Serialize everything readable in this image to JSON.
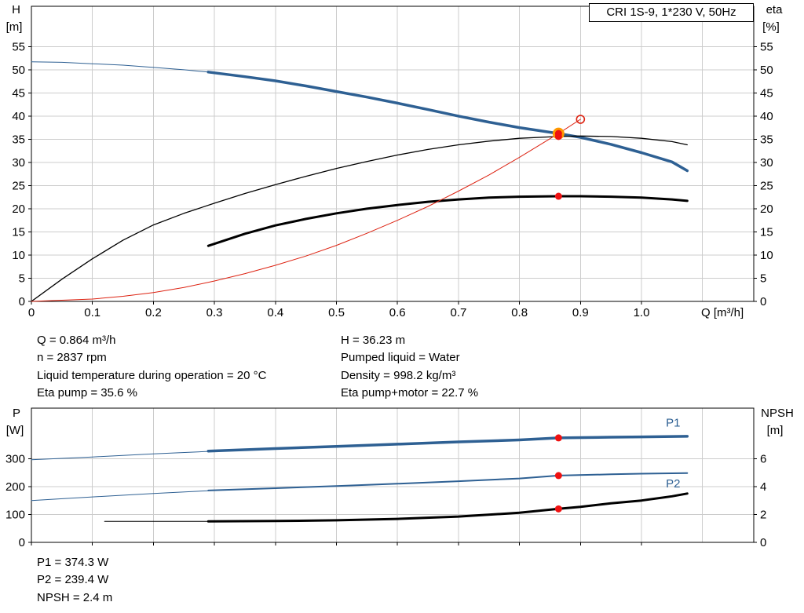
{
  "axes": {
    "top": {
      "left_1": "H",
      "left_2": "[m]",
      "right_1": "eta",
      "right_2": "[%]",
      "x": "Q [m³/h]"
    },
    "bottom": {
      "left_1": "P",
      "left_2": "[W]",
      "right_1": "NPSH",
      "right_2": "[m]"
    }
  },
  "info": {
    "top_left": [
      "Q = 0.864 m³/h",
      "n = 2837 rpm",
      "Liquid temperature during operation = 20 °C",
      "Eta pump = 35.6 %"
    ],
    "top_right": [
      "H = 36.23 m",
      "Pumped liquid = Water",
      "Density = 998.2 kg/m³",
      "Eta pump+motor = 22.7 %"
    ],
    "bottom": [
      "P1 = 374.3 W",
      "P2 = 239.4 W",
      "NPSH = 2.4 m"
    ]
  },
  "colors": {
    "curve_blue": "#2e6093",
    "curve_red": "#dd2211",
    "dot_red": "#ee1111",
    "ring_orange": "#ff9900",
    "grid": "#cccccc",
    "frame": "#000000"
  },
  "chart_data": [
    {
      "type": "line",
      "title": "CRI 1S-9, 1*230 V, 50Hz",
      "xlabel": "Q [m³/h]",
      "ylabel": "H [m]",
      "ylabel_right": "eta [%]",
      "xlim": [
        0,
        1.184
      ],
      "ylim": [
        0,
        63.7
      ],
      "ylim_right": [
        0,
        63.7
      ],
      "grid_color": "#cccccc",
      "show_x_labels": true,
      "xticks": [
        0,
        0.1,
        0.2,
        0.3,
        0.4,
        0.5,
        0.6,
        0.7,
        0.8,
        0.9,
        1.0
      ],
      "xgrid": [
        0.1,
        0.2,
        0.3,
        0.4,
        0.5,
        0.6,
        0.7,
        0.8,
        0.9,
        1.0,
        1.1
      ],
      "yticks": [
        0,
        5,
        10,
        15,
        20,
        25,
        30,
        35,
        40,
        45,
        50,
        55
      ],
      "yticks_right": [
        0,
        5,
        10,
        15,
        20,
        25,
        30,
        35,
        40,
        45,
        50,
        55
      ],
      "ygrid": [
        5,
        10,
        15,
        20,
        25,
        30,
        35,
        40,
        45,
        50,
        55
      ],
      "series": [
        {
          "name": "qh-shutoff",
          "color": "#2e6093",
          "width": 1,
          "points": [
            [
              0,
              51.7
            ],
            [
              0.05,
              51.6
            ],
            [
              0.1,
              51.3
            ],
            [
              0.15,
              51.0
            ],
            [
              0.2,
              50.5
            ],
            [
              0.25,
              50.0
            ],
            [
              0.29,
              49.5
            ]
          ]
        },
        {
          "name": "qh",
          "color": "#2e6093",
          "width": 3.5,
          "points": [
            [
              0.29,
              49.5
            ],
            [
              0.35,
              48.5
            ],
            [
              0.4,
              47.6
            ],
            [
              0.45,
              46.5
            ],
            [
              0.5,
              45.3
            ],
            [
              0.55,
              44.1
            ],
            [
              0.6,
              42.8
            ],
            [
              0.65,
              41.4
            ],
            [
              0.7,
              40.0
            ],
            [
              0.75,
              38.7
            ],
            [
              0.8,
              37.5
            ],
            [
              0.864,
              36.23
            ],
            [
              0.9,
              35.4
            ],
            [
              0.95,
              33.9
            ],
            [
              1.0,
              32.1
            ],
            [
              1.05,
              30.1
            ],
            [
              1.075,
              28.2
            ]
          ]
        },
        {
          "name": "eta-pump",
          "color": "#000000",
          "width": 1.3,
          "points": [
            [
              0,
              0
            ],
            [
              0.05,
              4.8
            ],
            [
              0.1,
              9.2
            ],
            [
              0.15,
              13.2
            ],
            [
              0.2,
              16.5
            ],
            [
              0.25,
              19.0
            ],
            [
              0.3,
              21.2
            ],
            [
              0.35,
              23.3
            ],
            [
              0.4,
              25.2
            ],
            [
              0.45,
              27.0
            ],
            [
              0.5,
              28.7
            ],
            [
              0.55,
              30.2
            ],
            [
              0.6,
              31.6
            ],
            [
              0.65,
              32.8
            ],
            [
              0.7,
              33.8
            ],
            [
              0.75,
              34.6
            ],
            [
              0.8,
              35.2
            ],
            [
              0.864,
              35.6
            ],
            [
              0.9,
              35.7
            ],
            [
              0.95,
              35.6
            ],
            [
              1.0,
              35.2
            ],
            [
              1.05,
              34.5
            ],
            [
              1.075,
              33.8
            ]
          ]
        },
        {
          "name": "eta-pump-motor",
          "color": "#000000",
          "width": 3,
          "points": [
            [
              0.29,
              12.0
            ],
            [
              0.35,
              14.6
            ],
            [
              0.4,
              16.4
            ],
            [
              0.45,
              17.8
            ],
            [
              0.5,
              19.0
            ],
            [
              0.55,
              20.0
            ],
            [
              0.6,
              20.8
            ],
            [
              0.65,
              21.5
            ],
            [
              0.7,
              22.0
            ],
            [
              0.75,
              22.4
            ],
            [
              0.8,
              22.6
            ],
            [
              0.864,
              22.7
            ],
            [
              0.9,
              22.7
            ],
            [
              0.95,
              22.6
            ],
            [
              1.0,
              22.4
            ],
            [
              1.05,
              22.0
            ],
            [
              1.075,
              21.7
            ]
          ]
        },
        {
          "name": "system-curve",
          "color": "#dd2211",
          "width": 1,
          "points": [
            [
              0,
              0
            ],
            [
              0.1,
              0.5
            ],
            [
              0.15,
              1.1
            ],
            [
              0.2,
              1.9
            ],
            [
              0.25,
              3.0
            ],
            [
              0.3,
              4.4
            ],
            [
              0.35,
              6.0
            ],
            [
              0.4,
              7.8
            ],
            [
              0.45,
              9.8
            ],
            [
              0.5,
              12.1
            ],
            [
              0.55,
              14.7
            ],
            [
              0.6,
              17.5
            ],
            [
              0.65,
              20.5
            ],
            [
              0.7,
              23.8
            ],
            [
              0.75,
              27.3
            ],
            [
              0.8,
              31.1
            ],
            [
              0.864,
              36.23
            ],
            [
              0.9,
              39.3
            ]
          ]
        }
      ],
      "markers": [
        {
          "style": "open",
          "x": 0.9,
          "y": 39.3,
          "stroke": "#dd2211"
        },
        {
          "style": "ring",
          "x": 0.864,
          "y": 36.23,
          "fill": "#ee1111",
          "stroke": "#ff9900"
        },
        {
          "style": "dot",
          "x": 0.864,
          "y": 35.6,
          "fill": "#ee1111"
        },
        {
          "style": "dot",
          "x": 0.864,
          "y": 22.7,
          "fill": "#ee1111"
        }
      ],
      "labels": []
    },
    {
      "type": "line",
      "title": "",
      "xlabel": "",
      "ylabel": "P [W]",
      "ylabel_right": "NPSH [m]",
      "xlim": [
        0,
        1.184
      ],
      "ylim": [
        0,
        481
      ],
      "ylim_right": [
        0,
        9.62
      ],
      "grid_color": "#cccccc",
      "show_x_labels": false,
      "xticks": [
        0,
        0.1,
        0.2,
        0.3,
        0.4,
        0.5,
        0.6,
        0.7,
        0.8,
        0.9,
        1.0
      ],
      "xgrid": [
        0.1,
        0.2,
        0.3,
        0.4,
        0.5,
        0.6,
        0.7,
        0.8,
        0.9,
        1.0,
        1.1
      ],
      "yticks": [
        0,
        100,
        200,
        300
      ],
      "yticks_right": [
        0,
        2,
        4,
        6
      ],
      "ygrid": [
        100,
        200,
        300
      ],
      "series": [
        {
          "name": "p1-low",
          "color": "#2e6093",
          "width": 1,
          "points": [
            [
              0,
              296
            ],
            [
              0.1,
              306
            ],
            [
              0.2,
              317
            ],
            [
              0.29,
              326
            ]
          ]
        },
        {
          "name": "p1",
          "color": "#2e6093",
          "width": 3.5,
          "points": [
            [
              0.29,
              327
            ],
            [
              0.4,
              336
            ],
            [
              0.5,
              344
            ],
            [
              0.6,
              352
            ],
            [
              0.7,
              360
            ],
            [
              0.8,
              367
            ],
            [
              0.864,
              374.3
            ],
            [
              0.95,
              377
            ],
            [
              1.0,
              378
            ],
            [
              1.075,
              380
            ]
          ]
        },
        {
          "name": "p2-low",
          "color": "#2e6093",
          "width": 1,
          "points": [
            [
              0,
              150
            ],
            [
              0.1,
              163
            ],
            [
              0.2,
              175
            ],
            [
              0.29,
              185
            ]
          ]
        },
        {
          "name": "p2",
          "color": "#2e6093",
          "width": 2,
          "points": [
            [
              0.29,
              186
            ],
            [
              0.4,
              194
            ],
            [
              0.5,
              202
            ],
            [
              0.6,
              210
            ],
            [
              0.7,
              219
            ],
            [
              0.8,
              229
            ],
            [
              0.864,
              239.4
            ],
            [
              0.95,
              244
            ],
            [
              1.0,
              246
            ],
            [
              1.075,
              248
            ]
          ]
        },
        {
          "name": "npsh-low",
          "color": "#000000",
          "width": 1,
          "axis": "right",
          "points": [
            [
              0.12,
              1.5
            ],
            [
              0.2,
              1.5
            ],
            [
              0.29,
              1.5
            ]
          ]
        },
        {
          "name": "npsh",
          "color": "#000000",
          "width": 3,
          "axis": "right",
          "points": [
            [
              0.29,
              1.5
            ],
            [
              0.4,
              1.53
            ],
            [
              0.5,
              1.58
            ],
            [
              0.6,
              1.68
            ],
            [
              0.7,
              1.85
            ],
            [
              0.8,
              2.12
            ],
            [
              0.864,
              2.4
            ],
            [
              0.9,
              2.55
            ],
            [
              0.95,
              2.8
            ],
            [
              1.0,
              3.0
            ],
            [
              1.05,
              3.3
            ],
            [
              1.075,
              3.5
            ]
          ]
        }
      ],
      "markers": [
        {
          "style": "dot",
          "x": 0.864,
          "y": 374.3,
          "fill": "#ee1111"
        },
        {
          "style": "dot",
          "x": 0.864,
          "y": 239.4,
          "fill": "#ee1111"
        },
        {
          "style": "dot",
          "x": 0.864,
          "y": 2.4,
          "axis": "right",
          "fill": "#ee1111"
        }
      ],
      "labels": [
        {
          "text": "P1",
          "x": 1.04,
          "y": 415,
          "color": "#2e6093"
        },
        {
          "text": "P2",
          "x": 1.04,
          "y": 197,
          "color": "#2e6093"
        }
      ]
    }
  ]
}
